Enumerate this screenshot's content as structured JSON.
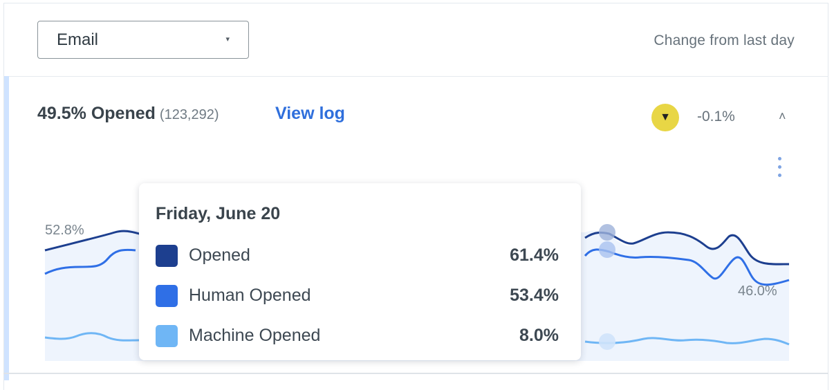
{
  "header": {
    "channel_select": {
      "value": "Email",
      "caret": "▾"
    },
    "change_label": "Change from last day"
  },
  "metric": {
    "headline": "49.5% Opened",
    "count": "(123,292)",
    "view_log": "View log",
    "trend_icon": "triangle-down-icon",
    "trend_glyph": "▼",
    "trend_color": "#e8d645",
    "delta": "-0.1%",
    "collapse_glyph": "˄"
  },
  "chart": {
    "annotations": {
      "start": "52.8%",
      "end": "46.0%"
    },
    "colors": {
      "opened": "#1d3f8f",
      "human_opened": "#2f6fe6",
      "machine_opened": "#6fb6f5",
      "fill": "#eef4fd"
    }
  },
  "tooltip": {
    "date": "Friday, June 20",
    "rows": [
      {
        "label": "Opened",
        "value": "61.4%",
        "color": "#1d3f8f"
      },
      {
        "label": "Human Opened",
        "value": "53.4%",
        "color": "#2f6fe6"
      },
      {
        "label": "Machine Opened",
        "value": "8.0%",
        "color": "#6fb6f5"
      }
    ]
  }
}
